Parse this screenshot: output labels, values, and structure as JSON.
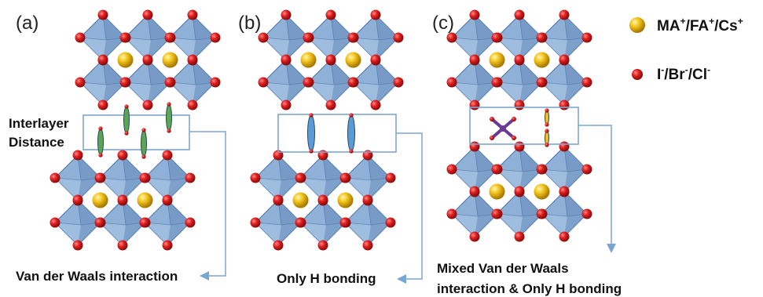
{
  "panels": [
    {
      "label": "(a)",
      "caption": "Van der Waals interaction",
      "annotation": [
        "Interlayer",
        "Distance"
      ]
    },
    {
      "label": "(b)",
      "caption": "Only H bonding"
    },
    {
      "label": "(c)",
      "caption": [
        "Mixed Van der Waals",
        "interaction & Only H bonding"
      ]
    }
  ],
  "legend": {
    "cation": {
      "parts": [
        "MA",
        "+",
        "/FA",
        "+",
        "/Cs",
        "+"
      ]
    },
    "anion": {
      "parts": [
        "I",
        "-",
        "/Br",
        "-",
        "/Cl",
        "-"
      ]
    }
  },
  "colors": {
    "octahedron_fill": "#8fb1d8",
    "octahedron_dark": "#6f93c0",
    "octahedron_edge": "#4d74a6",
    "halide": "#d61e1e",
    "cation": "#f2c318",
    "box": "#7da7cf",
    "arrow": "#7aa6d3",
    "green_bond": "#5aa653",
    "blue_bond": "#5b9bd5",
    "organic": "#6a3a93"
  }
}
